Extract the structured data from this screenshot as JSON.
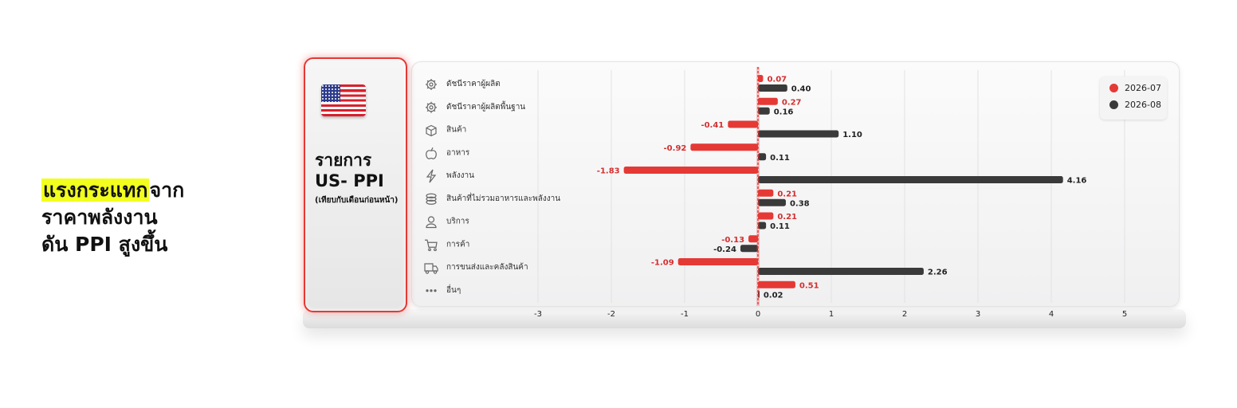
{
  "headline": {
    "highlight": "แรงกระแทก",
    "line1_rest": "จาก",
    "line2": "ราคาพลังงาน",
    "line3": "ดัน PPI สูงขึ้น"
  },
  "card": {
    "title_line1": "รายการ",
    "title_line2": "US- PPI",
    "subtitle": "(เทียบกับเดือนก่อนหน้า)",
    "flag": "us-flag"
  },
  "colors": {
    "series1": "#e53935",
    "series2": "#3a3a3a",
    "zero_line": "#e53935"
  },
  "chart_data": {
    "type": "bar",
    "orientation": "horizontal",
    "categories": [
      "ดัชนีราคาผู้ผลิต",
      "ดัชนีราคาผู้ผลิตพื้นฐาน",
      "สินค้า",
      "อาหาร",
      "พลังงาน",
      "สินค้าที่ไม่รวมอาหารและพลังงาน",
      "บริการ",
      "การค้า",
      "การขนส่งและคลังสินค้า",
      "อื่นๆ"
    ],
    "category_icons": [
      "gear-icon",
      "gear-icon",
      "box-icon",
      "apple-icon",
      "lightning-icon",
      "coins-icon",
      "person-icon",
      "cart-icon",
      "truck-icon",
      "dots-icon"
    ],
    "series": [
      {
        "name": "2026-07",
        "values": [
          0.07,
          0.27,
          -0.41,
          -0.92,
          -1.83,
          0.21,
          0.21,
          -0.13,
          -1.09,
          0.51
        ]
      },
      {
        "name": "2026-08",
        "values": [
          0.4,
          0.16,
          1.1,
          0.11,
          4.16,
          0.38,
          0.11,
          -0.24,
          2.26,
          0.02
        ]
      }
    ],
    "xlim": [
      -3,
      5
    ],
    "xticks": [
      "-3",
      "-2",
      "-1",
      "0",
      "1",
      "2",
      "3",
      "4",
      "5"
    ],
    "grid": true,
    "legend_position": "top-right"
  }
}
